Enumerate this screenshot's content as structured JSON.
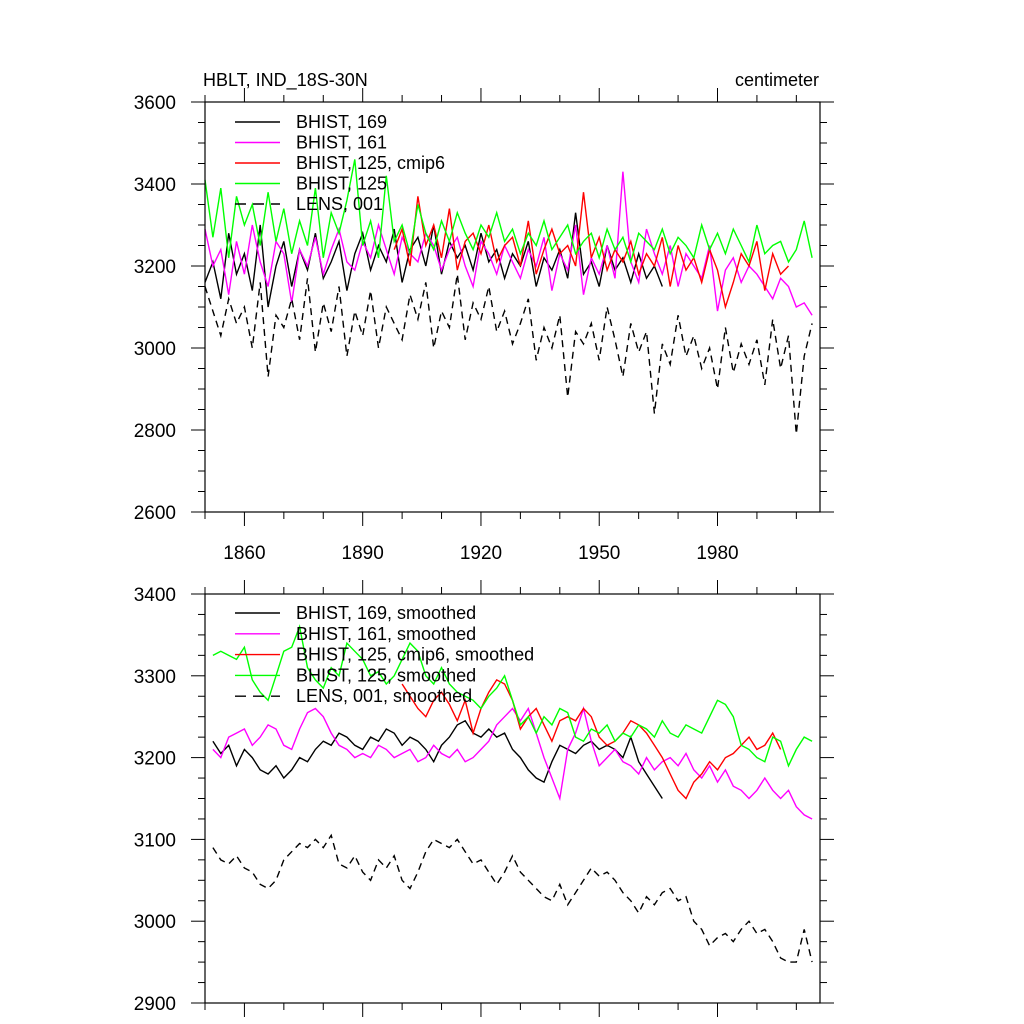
{
  "chart_data": [
    {
      "type": "line",
      "title": "HBLT, IND_18S-30N",
      "units": "centimeter",
      "xlim": [
        1850,
        2006
      ],
      "ylim": [
        2600,
        3600
      ],
      "xticks": [
        1860,
        1890,
        1920,
        1950,
        1980
      ],
      "yticks": [
        2600,
        2800,
        3000,
        3200,
        3400,
        3600
      ],
      "legend_position": "top-left",
      "series": [
        {
          "name": "BHIST, 169",
          "color": "#000000",
          "dash": false,
          "x_start": 1850,
          "x_step": 2,
          "values": [
            3160,
            3210,
            3120,
            3280,
            3180,
            3230,
            3140,
            3300,
            3100,
            3200,
            3260,
            3150,
            3240,
            3190,
            3280,
            3170,
            3210,
            3260,
            3140,
            3230,
            3280,
            3190,
            3250,
            3210,
            3290,
            3160,
            3240,
            3270,
            3200,
            3300,
            3180,
            3260,
            3220,
            3250,
            3190,
            3280,
            3210,
            3240,
            3170,
            3230,
            3200,
            3260,
            3150,
            3220,
            3190,
            3240,
            3170,
            3330,
            3180,
            3210,
            3150,
            3250,
            3190,
            3220,
            3160,
            3230,
            3170,
            3200,
            3150
          ]
        },
        {
          "name": "BHIST, 161",
          "color": "#ff00ff",
          "dash": false,
          "x_start": 1850,
          "x_step": 2,
          "values": [
            3290,
            3200,
            3240,
            3130,
            3260,
            3180,
            3300,
            3210,
            3150,
            3260,
            3230,
            3110,
            3240,
            3200,
            3270,
            3180,
            3240,
            3290,
            3210,
            3190,
            3260,
            3220,
            3300,
            3240,
            3180,
            3270,
            3230,
            3210,
            3280,
            3250,
            3190,
            3240,
            3270,
            3200,
            3150,
            3260,
            3230,
            3180,
            3250,
            3210,
            3170,
            3240,
            3200,
            3270,
            3140,
            3230,
            3190,
            3300,
            3130,
            3220,
            3180,
            3250,
            3170,
            3430,
            3210,
            3160,
            3290,
            3230,
            3180,
            3250,
            3150,
            3230,
            3200,
            3170,
            3250,
            3090,
            3190,
            3220,
            3160,
            3200,
            3180,
            3150,
            3120,
            3170,
            3150,
            3100,
            3110,
            3080
          ]
        },
        {
          "name": "BHIST, 125, cmip6",
          "color": "#ff0000",
          "dash": false,
          "x_start": 1898,
          "x_step": 2,
          "values": [
            3240,
            3290,
            3200,
            3370,
            3250,
            3300,
            3220,
            3340,
            3190,
            3260,
            3280,
            3230,
            3300,
            3210,
            3250,
            3270,
            3200,
            3310,
            3180,
            3240,
            3290,
            3230,
            3250,
            3200,
            3380,
            3220,
            3270,
            3190,
            3240,
            3210,
            3260,
            3180,
            3230,
            3200,
            3270,
            3150,
            3250,
            3190,
            3220,
            3160,
            3240,
            3190,
            3100,
            3160,
            3230,
            3200,
            3260,
            3140,
            3230,
            3180,
            3200
          ]
        },
        {
          "name": "BHIST, 125",
          "color": "#00ff00",
          "dash": false,
          "x_start": 1850,
          "x_step": 2,
          "values": [
            3410,
            3270,
            3390,
            3220,
            3370,
            3300,
            3350,
            3250,
            3380,
            3260,
            3340,
            3230,
            3310,
            3250,
            3390,
            3220,
            3330,
            3280,
            3360,
            3460,
            3250,
            3310,
            3220,
            3420,
            3260,
            3300,
            3230,
            3350,
            3280,
            3240,
            3310,
            3260,
            3330,
            3280,
            3240,
            3300,
            3270,
            3330,
            3260,
            3290,
            3230,
            3280,
            3250,
            3310,
            3240,
            3270,
            3300,
            3230,
            3260,
            3280,
            3220,
            3290,
            3240,
            3270,
            3210,
            3280,
            3260,
            3240,
            3290,
            3230,
            3270,
            3250,
            3220,
            3300,
            3240,
            3280,
            3230,
            3290,
            3250,
            3210,
            3300,
            3230,
            3250,
            3260,
            3210,
            3240,
            3310,
            3220
          ]
        },
        {
          "name": "LENS, 001",
          "color": "#000000",
          "dash": true,
          "x_start": 1850,
          "x_step": 2,
          "values": [
            3150,
            3090,
            3030,
            3120,
            3060,
            3100,
            3000,
            3160,
            2930,
            3080,
            3050,
            3120,
            3020,
            3170,
            2990,
            3110,
            3040,
            3150,
            2980,
            3090,
            3030,
            3140,
            3000,
            3100,
            3060,
            3020,
            3130,
            3070,
            3160,
            3000,
            3090,
            3050,
            3180,
            3020,
            3110,
            3070,
            3150,
            3040,
            3090,
            3010,
            3060,
            3120,
            2970,
            3050,
            3000,
            3080,
            2880,
            3040,
            3010,
            3060,
            2970,
            3100,
            3020,
            2930,
            3060,
            2990,
            3040,
            2840,
            3010,
            2960,
            3080,
            2980,
            3030,
            2950,
            3000,
            2900,
            3050,
            2940,
            3010,
            2960,
            3020,
            2910,
            3070,
            2950,
            3030,
            2790,
            2980,
            3060
          ]
        }
      ]
    },
    {
      "type": "line",
      "xlim": [
        1850,
        2006
      ],
      "ylim": [
        2900,
        3400
      ],
      "yticks": [
        2900,
        3000,
        3100,
        3200,
        3300,
        3400
      ],
      "legend_position": "top-left",
      "series": [
        {
          "name": "BHIST, 169, smoothed",
          "color": "#000000",
          "dash": false,
          "x_start": 1852,
          "x_step": 2,
          "values": [
            3220,
            3205,
            3215,
            3190,
            3210,
            3200,
            3185,
            3180,
            3190,
            3175,
            3185,
            3200,
            3195,
            3210,
            3220,
            3215,
            3230,
            3225,
            3215,
            3210,
            3225,
            3220,
            3235,
            3230,
            3215,
            3225,
            3220,
            3210,
            3195,
            3215,
            3225,
            3240,
            3245,
            3230,
            3225,
            3235,
            3225,
            3230,
            3210,
            3200,
            3185,
            3175,
            3170,
            3195,
            3215,
            3210,
            3205,
            3215,
            3220,
            3210,
            3215,
            3210,
            3200,
            3225,
            3195,
            3180,
            3165,
            3150
          ]
        },
        {
          "name": "BHIST, 161, smoothed",
          "color": "#ff00ff",
          "dash": false,
          "x_start": 1852,
          "x_step": 2,
          "values": [
            3210,
            3200,
            3225,
            3230,
            3235,
            3215,
            3225,
            3240,
            3235,
            3215,
            3210,
            3235,
            3255,
            3260,
            3250,
            3230,
            3215,
            3210,
            3200,
            3205,
            3200,
            3215,
            3210,
            3200,
            3205,
            3210,
            3195,
            3200,
            3215,
            3205,
            3200,
            3210,
            3195,
            3200,
            3210,
            3220,
            3240,
            3250,
            3260,
            3245,
            3260,
            3230,
            3200,
            3175,
            3150,
            3210,
            3230,
            3260,
            3220,
            3190,
            3200,
            3210,
            3195,
            3190,
            3180,
            3200,
            3185,
            3195,
            3200,
            3190,
            3205,
            3185,
            3175,
            3190,
            3170,
            3185,
            3165,
            3160,
            3150,
            3160,
            3175,
            3160,
            3150,
            3160,
            3140,
            3130,
            3125
          ]
        },
        {
          "name": "BHIST, 125, cmip6, smoothed",
          "color": "#ff0000",
          "dash": false,
          "x_start": 1900,
          "x_step": 2,
          "values": [
            3290,
            3275,
            3260,
            3250,
            3270,
            3280,
            3265,
            3245,
            3270,
            3230,
            3260,
            3280,
            3295,
            3290,
            3270,
            3235,
            3250,
            3260,
            3240,
            3220,
            3245,
            3250,
            3245,
            3260,
            3250,
            3225,
            3215,
            3220,
            3230,
            3245,
            3240,
            3230,
            3215,
            3200,
            3180,
            3160,
            3150,
            3170,
            3180,
            3195,
            3185,
            3200,
            3205,
            3215,
            3225,
            3210,
            3215,
            3230,
            3210
          ]
        },
        {
          "name": "BHIST, 125, smoothed",
          "color": "#00ff00",
          "dash": false,
          "x_start": 1852,
          "x_step": 2,
          "values": [
            3325,
            3330,
            3325,
            3320,
            3335,
            3295,
            3280,
            3270,
            3300,
            3330,
            3335,
            3360,
            3310,
            3295,
            3285,
            3310,
            3300,
            3340,
            3330,
            3320,
            3300,
            3305,
            3290,
            3300,
            3320,
            3340,
            3330,
            3300,
            3290,
            3310,
            3290,
            3280,
            3275,
            3270,
            3260,
            3275,
            3285,
            3300,
            3270,
            3240,
            3250,
            3230,
            3250,
            3240,
            3260,
            3255,
            3225,
            3220,
            3235,
            3230,
            3240,
            3220,
            3230,
            3225,
            3240,
            3235,
            3225,
            3245,
            3230,
            3225,
            3240,
            3235,
            3230,
            3250,
            3270,
            3265,
            3250,
            3215,
            3210,
            3200,
            3195,
            3225,
            3220,
            3190,
            3210,
            3225,
            3220
          ]
        },
        {
          "name": "LENS, 001, smoothed",
          "color": "#000000",
          "dash": true,
          "x_start": 1852,
          "x_step": 2,
          "values": [
            3090,
            3075,
            3070,
            3080,
            3065,
            3060,
            3045,
            3040,
            3050,
            3075,
            3085,
            3095,
            3090,
            3100,
            3090,
            3105,
            3070,
            3065,
            3080,
            3060,
            3050,
            3075,
            3065,
            3080,
            3050,
            3040,
            3060,
            3085,
            3100,
            3095,
            3090,
            3100,
            3085,
            3070,
            3075,
            3060,
            3045,
            3060,
            3080,
            3060,
            3050,
            3040,
            3030,
            3025,
            3045,
            3020,
            3035,
            3050,
            3065,
            3055,
            3060,
            3050,
            3035,
            3025,
            3010,
            3030,
            3020,
            3035,
            3040,
            3025,
            3030,
            3000,
            2990,
            2970,
            2980,
            2985,
            2975,
            2990,
            3000,
            2985,
            2990,
            2975,
            2955,
            2950,
            2950,
            2990,
            2950
          ]
        }
      ]
    }
  ]
}
